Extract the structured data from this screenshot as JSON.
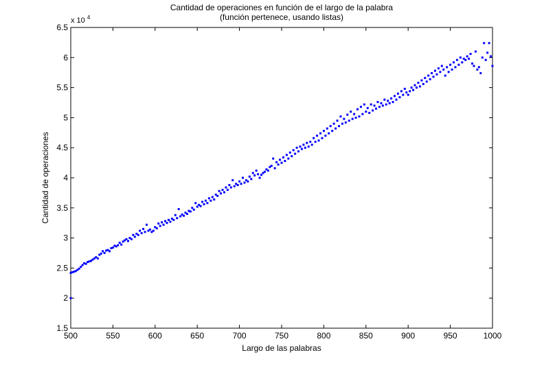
{
  "chart_data": {
    "type": "scatter",
    "title": "Cantidad de operaciones en función de el largo de la palabra",
    "subtitle": "(función pertenece, usando listas)",
    "xlabel": "Largo de las palabras",
    "ylabel": "Cantidad de operaciones",
    "xlim": [
      500,
      1000
    ],
    "ylim": [
      1.5,
      6.5
    ],
    "y_multiplier_label": "x 10",
    "y_multiplier_exponent": "4",
    "xticks": [
      "500",
      "550",
      "600",
      "650",
      "700",
      "750",
      "800",
      "850",
      "900",
      "950",
      "1000"
    ],
    "yticks": [
      "1.5",
      "2",
      "2.5",
      "3",
      "3.5",
      "4",
      "4.5",
      "5",
      "5.5",
      "6",
      "6.5"
    ],
    "marker_color": "#0000ff",
    "grid": false,
    "series": [
      {
        "points": [
          [
            500,
            2.0
          ],
          [
            500,
            2.42
          ],
          [
            502,
            2.43
          ],
          [
            504,
            2.44
          ],
          [
            506,
            2.45
          ],
          [
            508,
            2.47
          ],
          [
            510,
            2.49
          ],
          [
            512,
            2.52
          ],
          [
            514,
            2.55
          ],
          [
            516,
            2.58
          ],
          [
            518,
            2.57
          ],
          [
            520,
            2.6
          ],
          [
            522,
            2.61
          ],
          [
            524,
            2.62
          ],
          [
            526,
            2.64
          ],
          [
            528,
            2.66
          ],
          [
            530,
            2.68
          ],
          [
            532,
            2.66
          ],
          [
            534,
            2.72
          ],
          [
            536,
            2.74
          ],
          [
            538,
            2.78
          ],
          [
            540,
            2.75
          ],
          [
            542,
            2.79
          ],
          [
            544,
            2.8
          ],
          [
            546,
            2.78
          ],
          [
            548,
            2.83
          ],
          [
            550,
            2.84
          ],
          [
            552,
            2.87
          ],
          [
            554,
            2.86
          ],
          [
            556,
            2.88
          ],
          [
            558,
            2.92
          ],
          [
            560,
            2.89
          ],
          [
            562,
            2.94
          ],
          [
            564,
            2.96
          ],
          [
            566,
            2.98
          ],
          [
            568,
            2.95
          ],
          [
            570,
            3.0
          ],
          [
            572,
            2.98
          ],
          [
            574,
            3.05
          ],
          [
            576,
            3.02
          ],
          [
            578,
            3.07
          ],
          [
            580,
            3.05
          ],
          [
            582,
            3.12
          ],
          [
            584,
            3.08
          ],
          [
            586,
            3.15
          ],
          [
            588,
            3.1
          ],
          [
            590,
            3.22
          ],
          [
            592,
            3.12
          ],
          [
            594,
            3.14
          ],
          [
            596,
            3.1
          ],
          [
            598,
            3.12
          ],
          [
            600,
            3.18
          ],
          [
            602,
            3.16
          ],
          [
            604,
            3.24
          ],
          [
            606,
            3.2
          ],
          [
            608,
            3.26
          ],
          [
            610,
            3.22
          ],
          [
            612,
            3.28
          ],
          [
            614,
            3.25
          ],
          [
            616,
            3.3
          ],
          [
            618,
            3.27
          ],
          [
            620,
            3.32
          ],
          [
            622,
            3.3
          ],
          [
            624,
            3.38
          ],
          [
            626,
            3.33
          ],
          [
            628,
            3.48
          ],
          [
            630,
            3.36
          ],
          [
            632,
            3.39
          ],
          [
            634,
            3.37
          ],
          [
            636,
            3.42
          ],
          [
            638,
            3.4
          ],
          [
            640,
            3.45
          ],
          [
            642,
            3.44
          ],
          [
            644,
            3.5
          ],
          [
            646,
            3.47
          ],
          [
            648,
            3.58
          ],
          [
            650,
            3.52
          ],
          [
            652,
            3.55
          ],
          [
            654,
            3.53
          ],
          [
            656,
            3.6
          ],
          [
            658,
            3.56
          ],
          [
            660,
            3.62
          ],
          [
            662,
            3.58
          ],
          [
            664,
            3.66
          ],
          [
            666,
            3.62
          ],
          [
            668,
            3.68
          ],
          [
            670,
            3.64
          ],
          [
            672,
            3.72
          ],
          [
            674,
            3.7
          ],
          [
            676,
            3.78
          ],
          [
            678,
            3.74
          ],
          [
            680,
            3.8
          ],
          [
            682,
            3.76
          ],
          [
            684,
            3.84
          ],
          [
            686,
            3.8
          ],
          [
            688,
            3.88
          ],
          [
            690,
            3.84
          ],
          [
            692,
            3.96
          ],
          [
            694,
            3.86
          ],
          [
            696,
            3.9
          ],
          [
            698,
            3.88
          ],
          [
            700,
            3.94
          ],
          [
            702,
            3.9
          ],
          [
            704,
            4.0
          ],
          [
            706,
            3.92
          ],
          [
            708,
            3.96
          ],
          [
            710,
            3.94
          ],
          [
            712,
            4.02
          ],
          [
            714,
            3.98
          ],
          [
            716,
            4.08
          ],
          [
            718,
            4.04
          ],
          [
            720,
            4.12
          ],
          [
            722,
            4.06
          ],
          [
            724,
            4.0
          ],
          [
            726,
            4.05
          ],
          [
            728,
            4.08
          ],
          [
            730,
            4.1
          ],
          [
            732,
            4.14
          ],
          [
            734,
            4.12
          ],
          [
            736,
            4.18
          ],
          [
            738,
            4.2
          ],
          [
            740,
            4.32
          ],
          [
            742,
            4.16
          ],
          [
            744,
            4.26
          ],
          [
            746,
            4.22
          ],
          [
            748,
            4.3
          ],
          [
            750,
            4.25
          ],
          [
            752,
            4.34
          ],
          [
            754,
            4.28
          ],
          [
            756,
            4.38
          ],
          [
            758,
            4.32
          ],
          [
            760,
            4.42
          ],
          [
            762,
            4.36
          ],
          [
            764,
            4.46
          ],
          [
            766,
            4.4
          ],
          [
            768,
            4.5
          ],
          [
            770,
            4.44
          ],
          [
            772,
            4.52
          ],
          [
            774,
            4.48
          ],
          [
            776,
            4.55
          ],
          [
            778,
            4.5
          ],
          [
            780,
            4.58
          ],
          [
            782,
            4.52
          ],
          [
            784,
            4.6
          ],
          [
            786,
            4.55
          ],
          [
            788,
            4.66
          ],
          [
            790,
            4.6
          ],
          [
            792,
            4.7
          ],
          [
            794,
            4.62
          ],
          [
            796,
            4.74
          ],
          [
            798,
            4.66
          ],
          [
            800,
            4.78
          ],
          [
            802,
            4.7
          ],
          [
            804,
            4.82
          ],
          [
            806,
            4.74
          ],
          [
            808,
            4.86
          ],
          [
            810,
            4.78
          ],
          [
            812,
            4.9
          ],
          [
            814,
            4.82
          ],
          [
            816,
            4.95
          ],
          [
            818,
            4.86
          ],
          [
            820,
            5.02
          ],
          [
            822,
            4.9
          ],
          [
            824,
            4.98
          ],
          [
            826,
            4.92
          ],
          [
            828,
            5.05
          ],
          [
            830,
            4.95
          ],
          [
            832,
            5.1
          ],
          [
            834,
            4.98
          ],
          [
            836,
            5.06
          ],
          [
            838,
            5.0
          ],
          [
            840,
            5.14
          ],
          [
            842,
            5.02
          ],
          [
            844,
            5.18
          ],
          [
            846,
            5.06
          ],
          [
            848,
            5.22
          ],
          [
            850,
            5.1
          ],
          [
            852,
            5.16
          ],
          [
            854,
            5.08
          ],
          [
            856,
            5.22
          ],
          [
            858,
            5.12
          ],
          [
            860,
            5.2
          ],
          [
            862,
            5.15
          ],
          [
            864,
            5.26
          ],
          [
            866,
            5.18
          ],
          [
            868,
            5.24
          ],
          [
            870,
            5.2
          ],
          [
            872,
            5.3
          ],
          [
            874,
            5.22
          ],
          [
            876,
            5.28
          ],
          [
            878,
            5.24
          ],
          [
            880,
            5.32
          ],
          [
            882,
            5.26
          ],
          [
            884,
            5.36
          ],
          [
            886,
            5.3
          ],
          [
            888,
            5.4
          ],
          [
            890,
            5.34
          ],
          [
            892,
            5.44
          ],
          [
            894,
            5.38
          ],
          [
            896,
            5.48
          ],
          [
            898,
            5.42
          ],
          [
            900,
            5.38
          ],
          [
            902,
            5.44
          ],
          [
            904,
            5.5
          ],
          [
            906,
            5.46
          ],
          [
            908,
            5.54
          ],
          [
            910,
            5.5
          ],
          [
            912,
            5.58
          ],
          [
            914,
            5.52
          ],
          [
            916,
            5.62
          ],
          [
            918,
            5.56
          ],
          [
            920,
            5.66
          ],
          [
            922,
            5.6
          ],
          [
            924,
            5.7
          ],
          [
            926,
            5.64
          ],
          [
            928,
            5.74
          ],
          [
            930,
            5.68
          ],
          [
            932,
            5.78
          ],
          [
            934,
            5.72
          ],
          [
            936,
            5.82
          ],
          [
            938,
            5.76
          ],
          [
            940,
            5.86
          ],
          [
            942,
            5.8
          ],
          [
            944,
            5.7
          ],
          [
            946,
            5.84
          ],
          [
            948,
            5.76
          ],
          [
            950,
            5.88
          ],
          [
            952,
            5.8
          ],
          [
            954,
            5.92
          ],
          [
            956,
            5.84
          ],
          [
            958,
            5.96
          ],
          [
            960,
            5.88
          ],
          [
            962,
            6.0
          ],
          [
            964,
            5.92
          ],
          [
            966,
            5.98
          ],
          [
            968,
            5.96
          ],
          [
            970,
            6.02
          ],
          [
            972,
            5.98
          ],
          [
            974,
            6.06
          ],
          [
            976,
            5.9
          ],
          [
            978,
            5.86
          ],
          [
            980,
            6.1
          ],
          [
            982,
            5.8
          ],
          [
            984,
            5.84
          ],
          [
            986,
            5.74
          ],
          [
            988,
            6.0
          ],
          [
            990,
            6.24
          ],
          [
            992,
            5.96
          ],
          [
            994,
            6.08
          ],
          [
            996,
            6.24
          ],
          [
            998,
            6.02
          ],
          [
            1000,
            5.86
          ]
        ]
      }
    ]
  }
}
